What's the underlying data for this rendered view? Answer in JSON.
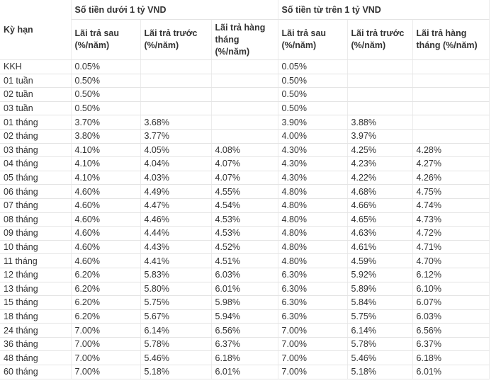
{
  "table": {
    "header": {
      "first": "Kỳ hạn",
      "groups": [
        "Số tiền dưới 1 tỷ VND",
        "Số tiền từ trên 1 tỷ VND"
      ],
      "columns": [
        [
          "Lãi trả sau (%/năm)",
          "Lãi trả trước (%/năm)",
          "Lãi trả hàng tháng (%/năm)"
        ],
        [
          "Lãi trả sau (%/năm)",
          "Lãi trả trước (%/năm)",
          "Lãi trả hàng tháng (%/năm)"
        ]
      ]
    },
    "rows": [
      [
        "KKH",
        "0.05%",
        null,
        null,
        "0.05%",
        null,
        null
      ],
      [
        "01 tuần",
        "0.50%",
        null,
        null,
        "0.50%",
        null,
        null
      ],
      [
        "02 tuần",
        "0.50%",
        null,
        null,
        "0.50%",
        null,
        null
      ],
      [
        "03 tuần",
        "0.50%",
        null,
        null,
        "0.50%",
        null,
        null
      ],
      [
        "01 tháng",
        "3.70%",
        "3.68%",
        null,
        "3.90%",
        "3.88%",
        null
      ],
      [
        "02 tháng",
        "3.80%",
        "3.77%",
        null,
        "4.00%",
        "3.97%",
        null
      ],
      [
        "03 tháng",
        "4.10%",
        "4.05%",
        "4.08%",
        "4.30%",
        "4.25%",
        "4.28%"
      ],
      [
        "04 tháng",
        "4.10%",
        "4.04%",
        "4.07%",
        "4.30%",
        "4.23%",
        "4.27%"
      ],
      [
        "05 tháng",
        "4.10%",
        "4.03%",
        "4.07%",
        "4.30%",
        "4.22%",
        "4.26%"
      ],
      [
        "06 tháng",
        "4.60%",
        "4.49%",
        "4.55%",
        "4.80%",
        "4.68%",
        "4.75%"
      ],
      [
        "07 tháng",
        "4.60%",
        "4.47%",
        "4.54%",
        "4.80%",
        "4.66%",
        "4.74%"
      ],
      [
        "08 tháng",
        "4.60%",
        "4.46%",
        "4.53%",
        "4.80%",
        "4.65%",
        "4.73%"
      ],
      [
        "09 tháng",
        "4.60%",
        "4.44%",
        "4.53%",
        "4.80%",
        "4.63%",
        "4.72%"
      ],
      [
        "10 tháng",
        "4.60%",
        "4.43%",
        "4.52%",
        "4.80%",
        "4.61%",
        "4.71%"
      ],
      [
        "11 tháng",
        "4.60%",
        "4.41%",
        "4.51%",
        "4.80%",
        "4.59%",
        "4.70%"
      ],
      [
        "12 tháng",
        "6.20%",
        "5.83%",
        "6.03%",
        "6.30%",
        "5.92%",
        "6.12%"
      ],
      [
        "13 tháng",
        "6.20%",
        "5.80%",
        "6.01%",
        "6.30%",
        "5.89%",
        "6.10%"
      ],
      [
        "15 tháng",
        "6.20%",
        "5.75%",
        "5.98%",
        "6.30%",
        "5.84%",
        "6.07%"
      ],
      [
        "18 tháng",
        "6.20%",
        "5.67%",
        "5.94%",
        "6.30%",
        "5.75%",
        "6.03%"
      ],
      [
        "24 tháng",
        "7.00%",
        "6.14%",
        "6.56%",
        "7.00%",
        "6.14%",
        "6.56%"
      ],
      [
        "36 tháng",
        "7.00%",
        "5.78%",
        "6.37%",
        "7.00%",
        "5.78%",
        "6.37%"
      ],
      [
        "48 tháng",
        "7.00%",
        "5.46%",
        "6.18%",
        "7.00%",
        "5.46%",
        "6.18%"
      ],
      [
        "60 tháng",
        "7.00%",
        "5.18%",
        "6.01%",
        "7.00%",
        "5.18%",
        "6.01%"
      ]
    ]
  }
}
